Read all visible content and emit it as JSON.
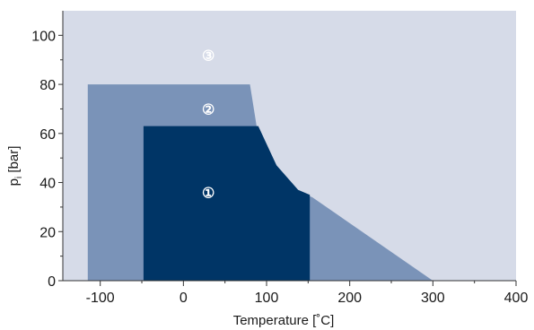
{
  "chart_data": {
    "type": "area",
    "title": "",
    "xlabel": "Temperature [˚C]",
    "ylabel": "p",
    "ylabel_subscript": "i",
    "ylabel_unit": " [bar]",
    "xlim": [
      -145,
      400
    ],
    "ylim": [
      0,
      110
    ],
    "xticks": [
      -100,
      0,
      100,
      200,
      300,
      400
    ],
    "xtick_labels": [
      "-100",
      "0",
      "100",
      "200",
      "300",
      "400"
    ],
    "yticks": [
      0,
      20,
      40,
      60,
      80,
      100
    ],
    "ytick_labels": [
      "0",
      "20",
      "40",
      "60",
      "80",
      "100"
    ],
    "grid": false,
    "regions": [
      {
        "label": "③",
        "color": "#d6dbe8",
        "label_color": "#ffffff",
        "label_at": [
          30,
          92
        ],
        "polygon": [
          [
            -145,
            0
          ],
          [
            400,
            0
          ],
          [
            400,
            110
          ],
          [
            -145,
            110
          ]
        ]
      },
      {
        "label": "②",
        "color": "#7a93b8",
        "label_color": "#ffffff",
        "label_at": [
          30,
          70
        ],
        "polygon": [
          [
            -115,
            0
          ],
          [
            -115,
            80
          ],
          [
            80,
            80
          ],
          [
            88,
            63
          ],
          [
            112,
            47
          ],
          [
            140,
            36
          ],
          [
            155,
            34
          ],
          [
            300,
            0
          ]
        ]
      },
      {
        "label": "①",
        "color": "#003566",
        "label_color": "#ffffff",
        "label_at": [
          30,
          36
        ],
        "polygon": [
          [
            -48,
            0
          ],
          [
            -48,
            63
          ],
          [
            90,
            63
          ],
          [
            112,
            47
          ],
          [
            138,
            37
          ],
          [
            152,
            35
          ],
          [
            152,
            0
          ]
        ]
      }
    ]
  }
}
